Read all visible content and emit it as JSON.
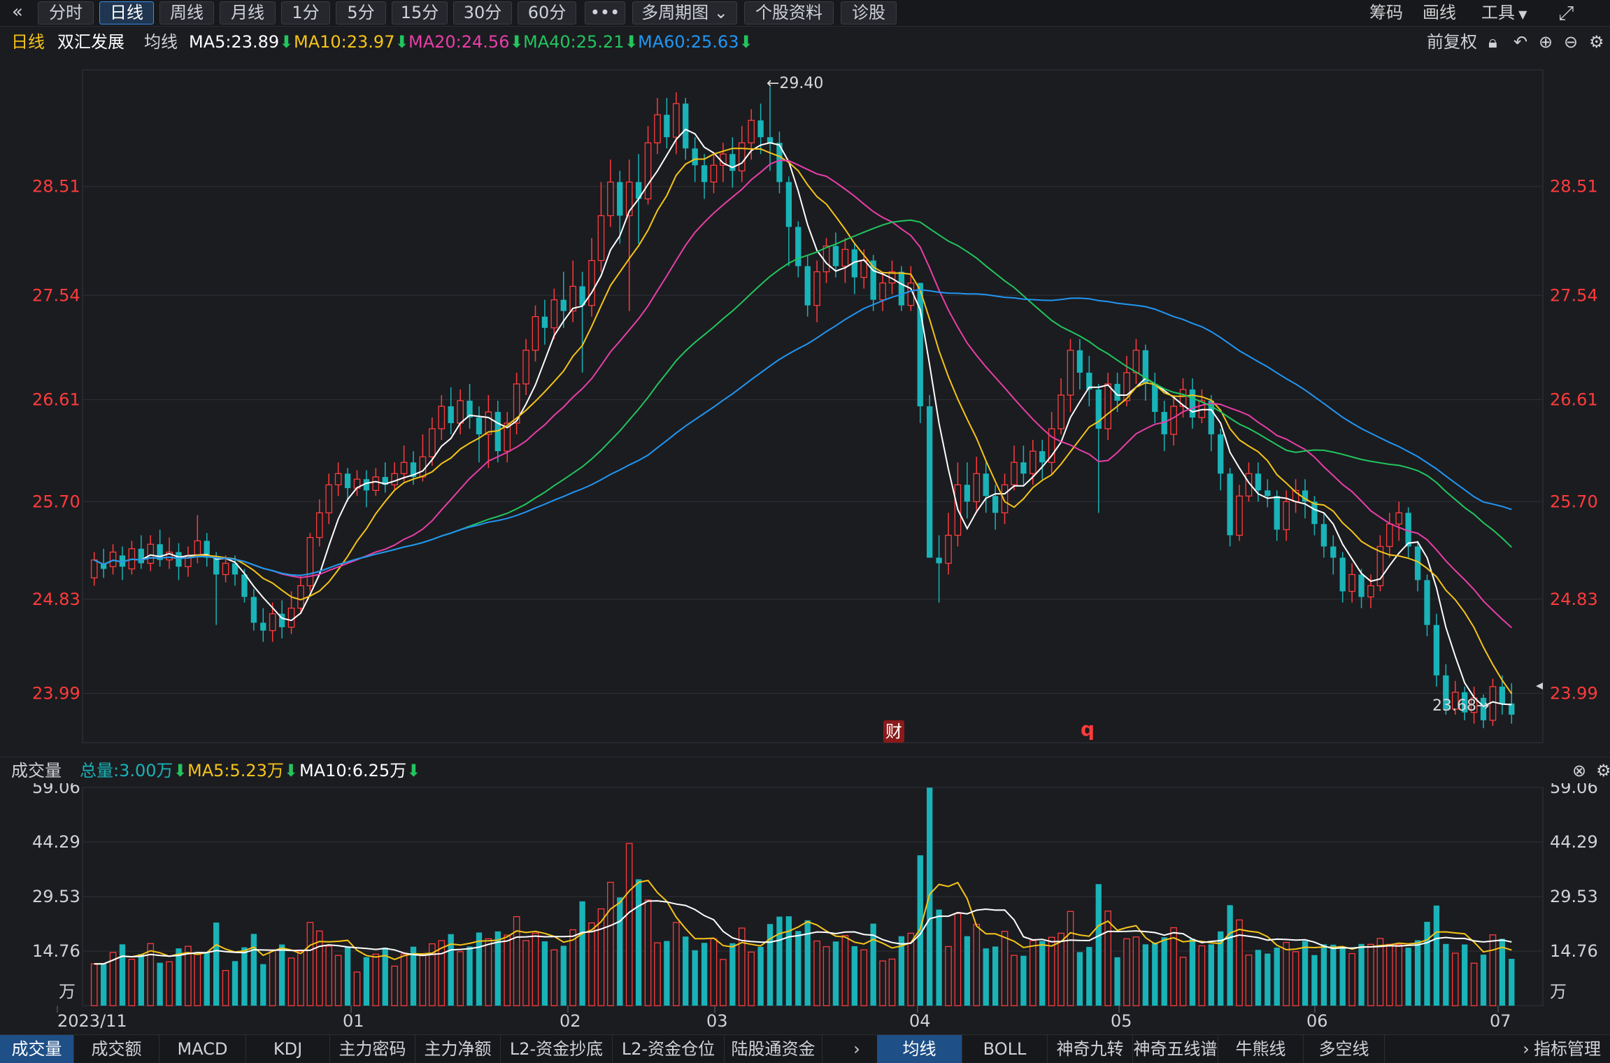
{
  "toolbar": {
    "back_icon": "double-chevron-left-icon",
    "periods": [
      "分时",
      "日线",
      "周线",
      "月线",
      "1分",
      "5分",
      "15分",
      "30分",
      "60分"
    ],
    "active_period": "日线",
    "more": "•••",
    "multi_period": "多周期图",
    "stock_info": "个股资料",
    "diagnose": "诊股",
    "right": {
      "chips": "筹码",
      "draw": "画线",
      "tools": "工具"
    }
  },
  "legend": {
    "period": "日线",
    "stock_name": "双汇发展",
    "ma_title": "均线",
    "ma5": "MA5:23.89",
    "ma10": "MA10:23.97",
    "ma20": "MA20:24.56",
    "ma40": "MA40:25.21",
    "ma60": "MA60:25.63",
    "adjust": "前复权"
  },
  "price_axis": [
    "28.51",
    "27.54",
    "26.61",
    "25.70",
    "24.83",
    "23.99"
  ],
  "annotations": {
    "high": "←29.40",
    "low": "23.68→",
    "finance_badge": "财",
    "marker": "q"
  },
  "volume_legend": {
    "title": "成交量",
    "total": "总量:3.00万",
    "ma5": "MA5:5.23万",
    "ma10": "MA10:6.25万"
  },
  "volume_axis": [
    "59.06",
    "44.29",
    "29.53",
    "14.76"
  ],
  "volume_unit": "万",
  "date_axis": [
    "2023/11",
    "01",
    "02",
    "03",
    "04",
    "05",
    "06",
    "07"
  ],
  "bottom_tabs_left": [
    "成交量",
    "成交额",
    "MACD",
    "KDJ",
    "主力密码",
    "主力净额",
    "L2-资金抄底",
    "L2-资金仓位",
    "陆股通资金"
  ],
  "bottom_tabs_right": [
    "均线",
    "BOLL",
    "神奇九转",
    "神奇五线谱",
    "牛熊线",
    "多空线"
  ],
  "indicator_manage": "指标管理",
  "colors": {
    "up": "#ff3b3b",
    "down": "#19b3b8",
    "ma5": "#ffffff",
    "ma10": "#f5c419",
    "ma20": "#e93ea8",
    "ma40": "#22c55e",
    "ma60": "#2196f3",
    "axis_text": "#ff3b3b"
  },
  "chart_data": {
    "type": "candlestick",
    "title": "双汇发展 日线",
    "y_range": [
      23.55,
      29.55
    ],
    "candles": [
      [
        25.02,
        25.18,
        25.25,
        24.95
      ],
      [
        25.15,
        25.1,
        25.28,
        25.02
      ],
      [
        25.12,
        25.25,
        25.32,
        25.05
      ],
      [
        25.22,
        25.12,
        25.3,
        25.0
      ],
      [
        25.1,
        25.28,
        25.35,
        25.05
      ],
      [
        25.28,
        25.15,
        25.4,
        25.1
      ],
      [
        25.15,
        25.32,
        25.4,
        25.08
      ],
      [
        25.32,
        25.18,
        25.45,
        25.12
      ],
      [
        25.18,
        25.25,
        25.38,
        25.1
      ],
      [
        25.25,
        25.12,
        25.33,
        25.0
      ],
      [
        25.12,
        25.22,
        25.3,
        25.03
      ],
      [
        25.22,
        25.35,
        25.58,
        25.15
      ],
      [
        25.35,
        25.2,
        25.42,
        25.12
      ],
      [
        25.2,
        25.05,
        25.25,
        24.6
      ],
      [
        25.05,
        25.15,
        25.22,
        24.98
      ],
      [
        25.15,
        25.05,
        25.22,
        24.95
      ],
      [
        25.05,
        24.85,
        25.1,
        24.8
      ],
      [
        24.85,
        24.62,
        24.92,
        24.55
      ],
      [
        24.62,
        24.55,
        24.75,
        24.45
      ],
      [
        24.55,
        24.7,
        24.8,
        24.45
      ],
      [
        24.7,
        24.58,
        24.82,
        24.48
      ],
      [
        24.58,
        24.75,
        24.9,
        24.52
      ],
      [
        24.75,
        24.95,
        25.05,
        24.7
      ],
      [
        24.95,
        25.38,
        25.42,
        24.9
      ],
      [
        25.38,
        25.6,
        25.72,
        25.3
      ],
      [
        25.6,
        25.85,
        25.95,
        25.5
      ],
      [
        25.85,
        25.95,
        26.05,
        25.75
      ],
      [
        25.95,
        25.82,
        26.0,
        25.7
      ],
      [
        25.82,
        25.9,
        25.98,
        25.75
      ],
      [
        25.9,
        25.8,
        25.98,
        25.65
      ],
      [
        25.8,
        25.92,
        26.0,
        25.75
      ],
      [
        25.92,
        25.85,
        26.05,
        25.78
      ],
      [
        25.85,
        25.95,
        26.05,
        25.8
      ],
      [
        25.95,
        26.05,
        26.2,
        25.88
      ],
      [
        26.05,
        25.92,
        26.15,
        25.85
      ],
      [
        25.92,
        26.1,
        26.3,
        25.88
      ],
      [
        26.1,
        26.35,
        26.45,
        26.02
      ],
      [
        26.35,
        26.55,
        26.65,
        26.25
      ],
      [
        26.55,
        26.4,
        26.72,
        26.3
      ],
      [
        26.4,
        26.6,
        26.7,
        26.3
      ],
      [
        26.6,
        26.45,
        26.75,
        26.35
      ],
      [
        26.45,
        26.3,
        26.55,
        26.05
      ],
      [
        26.3,
        26.5,
        26.65,
        26.0
      ],
      [
        26.5,
        26.15,
        26.6,
        26.05
      ],
      [
        26.15,
        26.4,
        26.5,
        26.05
      ],
      [
        26.4,
        26.75,
        26.85,
        26.3
      ],
      [
        26.75,
        27.05,
        27.15,
        26.65
      ],
      [
        27.05,
        27.35,
        27.45,
        26.95
      ],
      [
        27.35,
        27.25,
        27.5,
        27.1
      ],
      [
        27.25,
        27.5,
        27.6,
        27.15
      ],
      [
        27.5,
        27.4,
        27.75,
        27.25
      ],
      [
        27.4,
        27.62,
        27.85,
        27.3
      ],
      [
        27.62,
        27.45,
        27.75,
        26.85
      ],
      [
        27.45,
        27.85,
        28.05,
        27.35
      ],
      [
        27.85,
        28.25,
        28.55,
        27.75
      ],
      [
        28.25,
        28.55,
        28.75,
        28.15
      ],
      [
        28.55,
        28.25,
        28.65,
        28.0
      ],
      [
        28.25,
        28.55,
        28.75,
        27.4
      ],
      [
        28.55,
        28.4,
        28.8,
        28.0
      ],
      [
        28.4,
        28.9,
        29.05,
        28.35
      ],
      [
        28.9,
        29.15,
        29.3,
        28.8
      ],
      [
        29.15,
        28.95,
        29.3,
        28.85
      ],
      [
        28.95,
        29.25,
        29.35,
        28.8
      ],
      [
        29.25,
        28.85,
        29.3,
        28.75
      ],
      [
        28.85,
        28.7,
        28.95,
        28.55
      ],
      [
        28.7,
        28.55,
        28.8,
        28.4
      ],
      [
        28.55,
        28.7,
        28.8,
        28.45
      ],
      [
        28.7,
        28.8,
        28.9,
        28.55
      ],
      [
        28.8,
        28.65,
        28.95,
        28.5
      ],
      [
        28.65,
        28.9,
        29.05,
        28.55
      ],
      [
        28.9,
        29.1,
        29.2,
        28.75
      ],
      [
        29.1,
        28.95,
        29.25,
        28.8
      ],
      [
        28.95,
        28.9,
        29.4,
        28.65
      ],
      [
        28.9,
        28.55,
        29.0,
        28.45
      ],
      [
        28.55,
        28.15,
        28.6,
        27.8
      ],
      [
        28.15,
        27.8,
        28.2,
        27.7
      ],
      [
        27.8,
        27.45,
        27.9,
        27.35
      ],
      [
        27.45,
        27.75,
        27.85,
        27.3
      ],
      [
        27.75,
        27.98,
        28.05,
        27.65
      ],
      [
        27.98,
        27.8,
        28.1,
        27.7
      ],
      [
        27.8,
        27.95,
        28.05,
        27.65
      ],
      [
        27.95,
        27.7,
        28.0,
        27.55
      ],
      [
        27.7,
        27.85,
        27.95,
        27.6
      ],
      [
        27.85,
        27.5,
        27.9,
        27.4
      ],
      [
        27.5,
        27.65,
        27.75,
        27.4
      ],
      [
        27.65,
        27.75,
        27.85,
        27.55
      ],
      [
        27.75,
        27.45,
        27.8,
        27.4
      ],
      [
        27.45,
        27.65,
        27.8,
        27.4
      ],
      [
        27.65,
        26.55,
        27.65,
        26.4
      ],
      [
        26.55,
        25.2,
        26.65,
        25.2
      ],
      [
        25.2,
        25.15,
        25.4,
        24.8
      ],
      [
        25.15,
        25.4,
        25.6,
        25.05
      ],
      [
        25.4,
        25.85,
        26.05,
        25.3
      ],
      [
        25.85,
        25.7,
        26.05,
        25.55
      ],
      [
        25.7,
        25.95,
        26.1,
        25.6
      ],
      [
        25.95,
        25.75,
        26.05,
        25.6
      ],
      [
        25.75,
        25.6,
        25.85,
        25.45
      ],
      [
        25.6,
        25.85,
        25.95,
        25.5
      ],
      [
        25.85,
        26.05,
        26.2,
        25.8
      ],
      [
        26.05,
        25.95,
        26.2,
        25.85
      ],
      [
        25.95,
        26.15,
        26.25,
        25.85
      ],
      [
        26.15,
        26.05,
        26.25,
        25.9
      ],
      [
        26.05,
        26.35,
        26.5,
        25.95
      ],
      [
        26.35,
        26.65,
        26.8,
        26.3
      ],
      [
        26.65,
        27.05,
        27.15,
        26.5
      ],
      [
        27.05,
        26.85,
        27.15,
        26.7
      ],
      [
        26.85,
        26.7,
        27.0,
        26.55
      ],
      [
        26.7,
        26.35,
        26.75,
        25.6
      ],
      [
        26.35,
        26.75,
        26.85,
        26.25
      ],
      [
        26.75,
        26.6,
        26.85,
        26.5
      ],
      [
        26.6,
        26.85,
        27.0,
        26.55
      ],
      [
        26.85,
        27.05,
        27.15,
        26.75
      ],
      [
        27.05,
        26.75,
        27.1,
        26.6
      ],
      [
        26.75,
        26.5,
        26.85,
        26.4
      ],
      [
        26.5,
        26.3,
        26.6,
        26.15
      ],
      [
        26.3,
        26.55,
        26.65,
        26.2
      ],
      [
        26.55,
        26.7,
        26.8,
        26.45
      ],
      [
        26.7,
        26.45,
        26.8,
        26.35
      ],
      [
        26.45,
        26.6,
        26.7,
        26.4
      ],
      [
        26.6,
        26.3,
        26.65,
        26.15
      ],
      [
        26.3,
        25.95,
        26.35,
        25.8
      ],
      [
        25.95,
        25.4,
        26.0,
        25.3
      ],
      [
        25.4,
        25.75,
        25.85,
        25.35
      ],
      [
        25.75,
        25.95,
        26.05,
        25.7
      ],
      [
        25.95,
        25.8,
        26.05,
        25.7
      ],
      [
        25.8,
        25.75,
        25.9,
        25.65
      ],
      [
        25.75,
        25.45,
        25.8,
        25.35
      ],
      [
        25.45,
        25.7,
        25.8,
        25.35
      ],
      [
        25.7,
        25.8,
        25.9,
        25.6
      ],
      [
        25.8,
        25.7,
        25.9,
        25.55
      ],
      [
        25.7,
        25.5,
        25.75,
        25.4
      ],
      [
        25.5,
        25.3,
        25.6,
        25.2
      ],
      [
        25.3,
        25.2,
        25.4,
        25.05
      ],
      [
        25.2,
        24.9,
        25.25,
        24.8
      ],
      [
        24.9,
        25.05,
        25.15,
        24.8
      ],
      [
        25.05,
        24.85,
        25.1,
        24.75
      ],
      [
        24.85,
        24.95,
        25.05,
        24.75
      ],
      [
        24.95,
        25.3,
        25.4,
        24.9
      ],
      [
        25.3,
        25.5,
        25.6,
        25.2
      ],
      [
        25.5,
        25.6,
        25.7,
        25.35
      ],
      [
        25.6,
        25.3,
        25.65,
        25.2
      ],
      [
        25.3,
        25.0,
        25.35,
        24.9
      ],
      [
        25.0,
        24.6,
        25.05,
        24.5
      ],
      [
        24.6,
        24.15,
        24.7,
        24.05
      ],
      [
        24.15,
        23.85,
        24.25,
        23.8
      ],
      [
        23.85,
        24.0,
        24.1,
        23.8
      ],
      [
        24.0,
        23.82,
        24.05,
        23.75
      ],
      [
        23.82,
        23.95,
        24.05,
        23.72
      ],
      [
        23.95,
        23.75,
        23.98,
        23.68
      ],
      [
        23.75,
        24.05,
        24.12,
        23.7
      ],
      [
        24.05,
        23.9,
        24.15,
        23.8
      ],
      [
        23.9,
        23.8,
        24.08,
        23.72
      ]
    ],
    "volume_range": [
      0,
      59.06
    ],
    "volume_unit": "万"
  }
}
